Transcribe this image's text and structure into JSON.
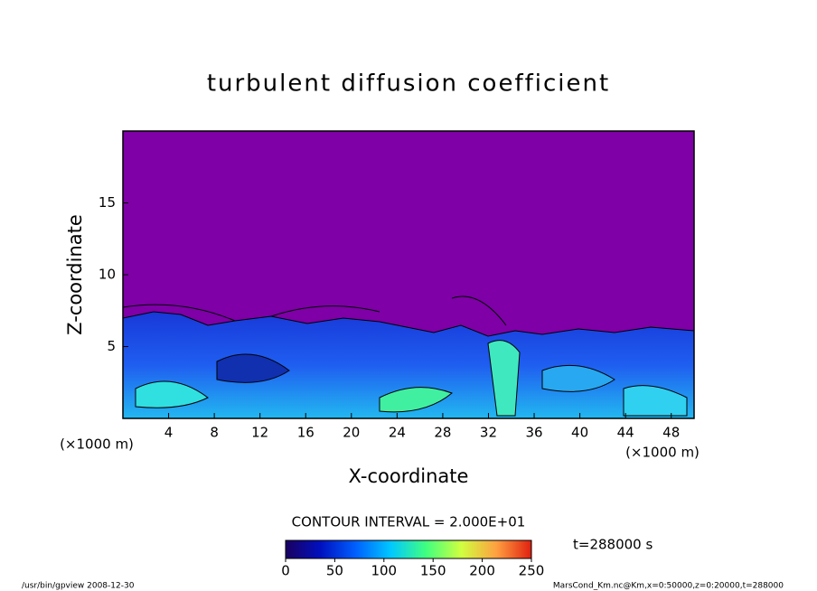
{
  "chart_data": {
    "type": "contour",
    "title": "turbulent diffusion coefficient",
    "x_label": "X-coordinate",
    "y_label": "Z-coordinate",
    "axis_unit": "(×1000 m)",
    "xlim": [
      0,
      50
    ],
    "xticks": [
      4,
      8,
      12,
      16,
      20,
      24,
      28,
      32,
      36,
      40,
      44,
      48
    ],
    "ylim": [
      0,
      20
    ],
    "yticks": [
      5,
      10,
      15
    ],
    "background_color": "#7e00a6",
    "colorbar": {
      "lim": [
        0,
        250
      ],
      "ticks": [
        0,
        50,
        100,
        150,
        200,
        250
      ],
      "colors": [
        "#1a0060",
        "#0010c0",
        "#0060ff",
        "#00c8ff",
        "#40ff80",
        "#d0ff40",
        "#ffa040",
        "#e02010"
      ]
    },
    "contour_interval": "CONTOUR INTERVAL = 2.000E+01",
    "time_label": "t=288000 s",
    "footer_left": "/usr/bin/gpview  2008-12-30",
    "footer_right": "MarsCond_Km.nc@Km,x=0:50000,z=0:20000,t=288000"
  }
}
